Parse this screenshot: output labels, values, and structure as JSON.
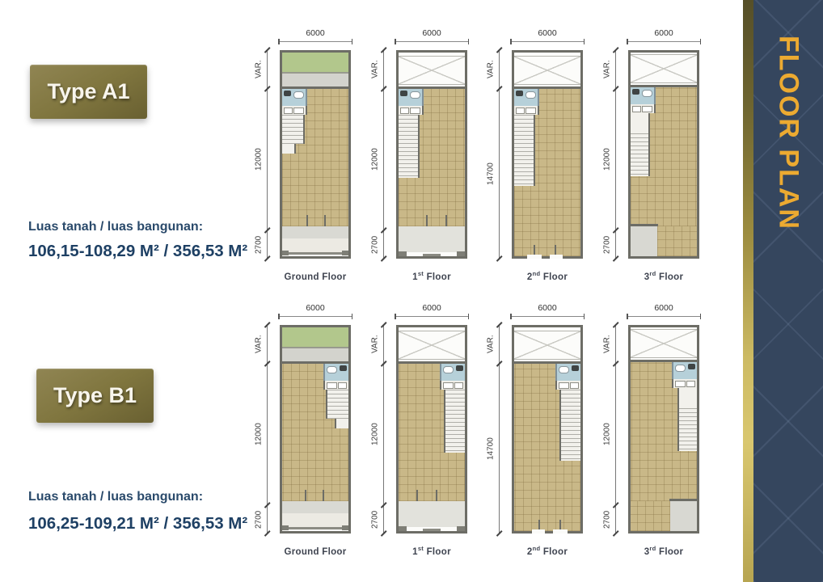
{
  "banner": {
    "title": "FLOOR PLAN",
    "accent_color": "#ECAA31",
    "panel_color": "#35465E",
    "gold_bar_color": "#C8B45C"
  },
  "palette": {
    "floor_tan": "#C9B888",
    "garden_green": "#B2C78C",
    "bathroom_blue": "#B6D0D9",
    "navy_text": "#1E4064",
    "type_button_gold": "#80763F"
  },
  "sections": [
    {
      "type_label": "Type A1",
      "area_caption": "Luas tanah / luas bangunan:",
      "area_value": "106,15-108,29 M² / 356,53 M²",
      "plans": [
        {
          "base": "Ground Floor",
          "sup": "",
          "suffix": "",
          "top_dim": "6000",
          "side_dims": [
            "VAR.",
            "12000",
            "2700"
          ],
          "variant": "ground",
          "mirrored": false
        },
        {
          "base": "1",
          "sup": "st",
          "suffix": " Floor",
          "top_dim": "6000",
          "side_dims": [
            "VAR.",
            "12000",
            "2700"
          ],
          "variant": "first",
          "mirrored": false
        },
        {
          "base": "2",
          "sup": "nd",
          "suffix": " Floor",
          "top_dim": "6000",
          "side_dims": [
            "VAR.",
            "14700"
          ],
          "variant": "second",
          "mirrored": false
        },
        {
          "base": "3",
          "sup": "rd",
          "suffix": " Floor",
          "top_dim": "6000",
          "side_dims": [
            "VAR.",
            "12000",
            "2700"
          ],
          "variant": "third",
          "mirrored": false
        }
      ]
    },
    {
      "type_label": "Type B1",
      "area_caption": "Luas tanah / luas bangunan:",
      "area_value": "106,25-109,21 M² / 356,53 M²",
      "plans": [
        {
          "base": "Ground Floor",
          "sup": "",
          "suffix": "",
          "top_dim": "6000",
          "side_dims": [
            "VAR.",
            "12000",
            "2700"
          ],
          "variant": "ground",
          "mirrored": true
        },
        {
          "base": "1",
          "sup": "st",
          "suffix": " Floor",
          "top_dim": "6000",
          "side_dims": [
            "VAR.",
            "12000",
            "2700"
          ],
          "variant": "first",
          "mirrored": true
        },
        {
          "base": "2",
          "sup": "nd",
          "suffix": " Floor",
          "top_dim": "6000",
          "side_dims": [
            "VAR.",
            "14700"
          ],
          "variant": "second",
          "mirrored": true
        },
        {
          "base": "3",
          "sup": "rd",
          "suffix": " Floor",
          "top_dim": "6000",
          "side_dims": [
            "VAR.",
            "12000",
            "2700"
          ],
          "variant": "third",
          "mirrored": true
        }
      ]
    }
  ]
}
